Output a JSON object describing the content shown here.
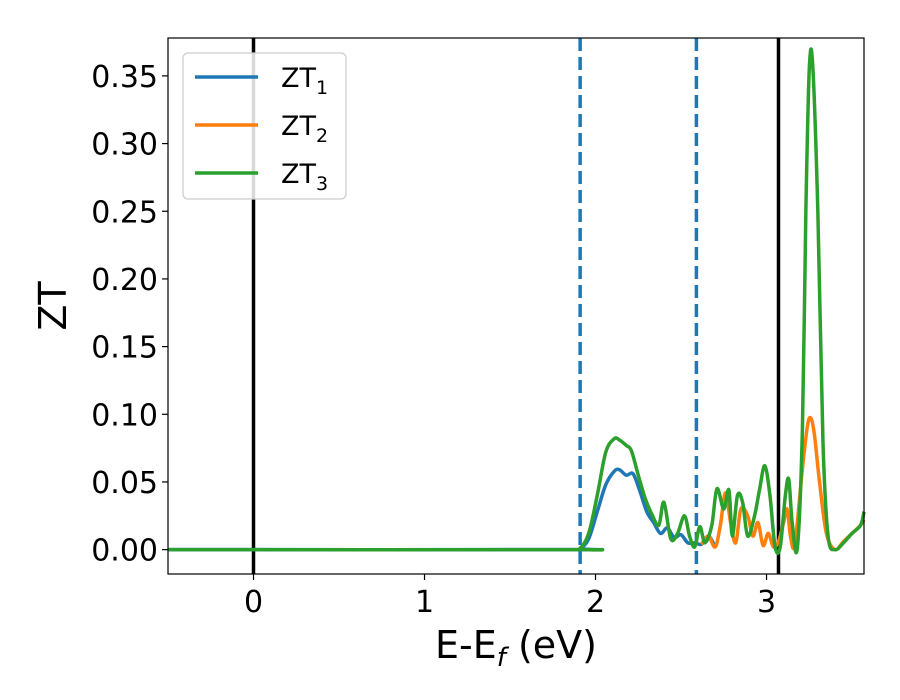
{
  "chart_data": {
    "type": "line",
    "xlabel": "E-E",
    "xlabel_sub": "f",
    "xlabel_unit": " (eV)",
    "ylabel": "ZT",
    "xlim": [
      -0.5,
      3.57
    ],
    "ylim": [
      -0.018,
      0.378
    ],
    "grid": false,
    "legend_position": "top-left",
    "xticks": [
      0,
      1,
      2,
      3
    ],
    "xtick_labels": [
      "0",
      "1",
      "2",
      "3"
    ],
    "yticks": [
      0.0,
      0.05,
      0.1,
      0.15,
      0.2,
      0.25,
      0.3,
      0.35
    ],
    "ytick_labels": [
      "0.00",
      "0.05",
      "0.10",
      "0.15",
      "0.20",
      "0.25",
      "0.30",
      "0.35"
    ],
    "vlines": [
      {
        "x": 0.0,
        "color": "#000000",
        "style": "solid"
      },
      {
        "x": 1.91,
        "color": "#1f77b4",
        "style": "dashed"
      },
      {
        "x": 2.59,
        "color": "#1f77b4",
        "style": "dashed"
      },
      {
        "x": 3.07,
        "color": "#000000",
        "style": "solid"
      }
    ],
    "series": [
      {
        "name": "ZT",
        "name_sub": "1",
        "color": "#1f77b4",
        "x": [
          -0.5,
          1.85,
          1.91,
          1.96,
          2.01,
          2.06,
          2.11,
          2.14,
          2.18,
          2.22,
          2.26,
          2.3,
          2.34,
          2.38,
          2.42,
          2.46,
          2.5,
          2.54,
          2.58,
          2.62,
          2.66,
          2.7
        ],
        "y": [
          0.0,
          0.0,
          0.001,
          0.008,
          0.028,
          0.048,
          0.058,
          0.059,
          0.055,
          0.056,
          0.043,
          0.028,
          0.02,
          0.012,
          0.016,
          0.009,
          0.011,
          0.005,
          0.005,
          0.004,
          0.01,
          0.002
        ]
      },
      {
        "name": "ZT",
        "name_sub": "2",
        "color": "#ff7f0e",
        "x": [
          2.62,
          2.66,
          2.7,
          2.73,
          2.76,
          2.79,
          2.82,
          2.85,
          2.89,
          2.92,
          2.95,
          2.98,
          3.01,
          3.04,
          3.07,
          3.1,
          3.12,
          3.14,
          3.16,
          3.18,
          3.21,
          3.24,
          3.26,
          3.28,
          3.31,
          3.35,
          3.4,
          3.45,
          3.5,
          3.55,
          3.57
        ],
        "y": [
          0.004,
          0.01,
          0.002,
          0.018,
          0.042,
          0.02,
          0.005,
          0.03,
          0.025,
          0.01,
          0.02,
          0.003,
          0.012,
          0.002,
          0.006,
          0.02,
          0.03,
          0.01,
          0.001,
          0.02,
          0.06,
          0.092,
          0.097,
          0.085,
          0.05,
          0.012,
          0.0,
          0.006,
          0.012,
          0.018,
          0.022
        ]
      },
      {
        "name": "ZT",
        "name_sub": "3",
        "color": "#2ca02c",
        "x": [
          -0.5,
          1.85,
          1.91,
          1.96,
          2.01,
          2.06,
          2.11,
          2.14,
          2.18,
          2.21,
          2.25,
          2.29,
          2.33,
          2.37,
          2.4,
          2.44,
          2.48,
          2.52,
          2.55,
          2.58,
          2.61,
          2.64,
          2.68,
          2.71,
          2.75,
          2.78,
          2.8,
          2.83,
          2.86,
          2.89,
          2.93,
          2.96,
          2.99,
          3.02,
          3.05,
          3.08,
          3.11,
          3.13,
          3.15,
          3.18,
          3.21,
          3.23,
          3.25,
          3.27,
          3.3,
          3.33,
          3.36,
          3.4,
          3.45,
          3.5,
          3.55,
          3.57
        ],
        "y": [
          0.0,
          0.0,
          0.001,
          0.012,
          0.04,
          0.072,
          0.082,
          0.081,
          0.077,
          0.073,
          0.055,
          0.038,
          0.026,
          0.018,
          0.035,
          0.008,
          0.012,
          0.025,
          0.01,
          0.002,
          0.017,
          0.005,
          0.018,
          0.045,
          0.03,
          0.044,
          0.01,
          0.04,
          0.035,
          0.01,
          0.025,
          0.045,
          0.062,
          0.04,
          0.002,
          0.002,
          0.04,
          0.052,
          0.02,
          0.001,
          0.09,
          0.25,
          0.355,
          0.358,
          0.25,
          0.08,
          0.01,
          0.0,
          0.005,
          0.012,
          0.018,
          0.028
        ]
      }
    ]
  }
}
